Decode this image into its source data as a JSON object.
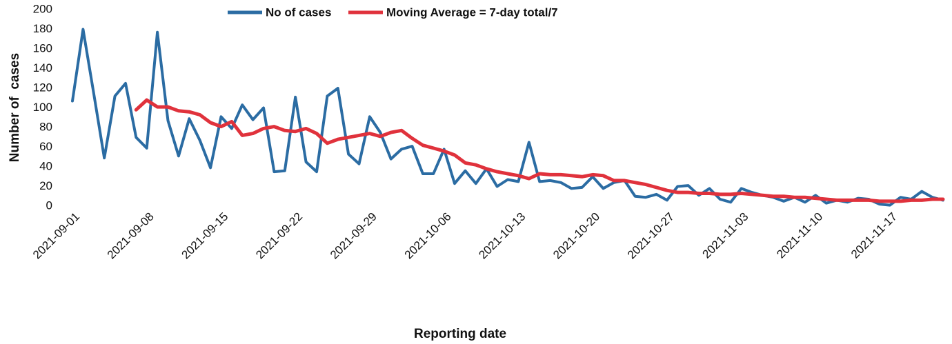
{
  "chart_data": {
    "type": "line",
    "x_label": "Reporting date",
    "y_label": "Number of  cases",
    "categories": [
      "2021-09-01",
      null,
      null,
      null,
      null,
      null,
      null,
      "2021-09-08",
      null,
      null,
      null,
      null,
      null,
      null,
      "2021-09-15",
      null,
      null,
      null,
      null,
      null,
      null,
      "2021-09-22",
      null,
      null,
      null,
      null,
      null,
      null,
      "2021-09-29",
      null,
      null,
      null,
      null,
      null,
      null,
      "2021-10-06",
      null,
      null,
      null,
      null,
      null,
      null,
      "2021-10-13",
      null,
      null,
      null,
      null,
      null,
      null,
      "2021-10-20",
      null,
      null,
      null,
      null,
      null,
      null,
      "2021-10-27",
      null,
      null,
      null,
      null,
      null,
      null,
      "2021-11-03",
      null,
      null,
      null,
      null,
      null,
      null,
      "2021-11-10",
      null,
      null,
      null,
      null,
      null,
      null,
      "2021-11-17",
      null,
      null,
      null,
      null,
      null
    ],
    "series": [
      {
        "name": "No of cases",
        "color": "#2b6ca3",
        "values": [
          107,
          180,
          115,
          49,
          112,
          125,
          70,
          59,
          177,
          87,
          51,
          89,
          67,
          39,
          91,
          79,
          103,
          88,
          100,
          35,
          36,
          111,
          45,
          35,
          112,
          120,
          53,
          43,
          91,
          75,
          48,
          58,
          61,
          33,
          33,
          58,
          23,
          36,
          23,
          38,
          20,
          27,
          25,
          65,
          25,
          26,
          24,
          18,
          19,
          30,
          18,
          24,
          26,
          10,
          9,
          12,
          6,
          20,
          21,
          11,
          18,
          7,
          4,
          18,
          14,
          11,
          9,
          5,
          9,
          4,
          11,
          3,
          6,
          4,
          8,
          7,
          2,
          1,
          9,
          7,
          15,
          9,
          6
        ]
      },
      {
        "name": "Moving Average = 7-day total/7",
        "color": "#e0323c",
        "values": [
          null,
          null,
          null,
          null,
          null,
          null,
          98,
          108,
          101,
          101,
          97,
          96,
          93,
          85,
          81,
          86,
          72,
          74,
          79,
          81,
          77,
          76,
          79,
          74,
          64,
          68,
          70,
          72,
          74,
          71,
          75,
          77,
          69,
          62,
          59,
          56,
          52,
          44,
          42,
          38,
          35,
          33,
          31,
          28,
          33,
          32,
          32,
          31,
          30,
          32,
          31,
          26,
          26,
          24,
          22,
          19,
          16,
          14,
          14,
          13,
          13,
          12,
          12,
          13,
          12,
          11,
          10,
          10,
          9,
          9,
          8,
          7,
          6,
          6,
          6,
          6,
          5,
          5,
          5,
          6,
          6,
          7,
          7
        ]
      }
    ],
    "ylim": [
      0,
      200
    ],
    "yticks": [
      0,
      20,
      40,
      60,
      80,
      100,
      120,
      140,
      160,
      180,
      200
    ],
    "grid": false,
    "legend": "top"
  }
}
